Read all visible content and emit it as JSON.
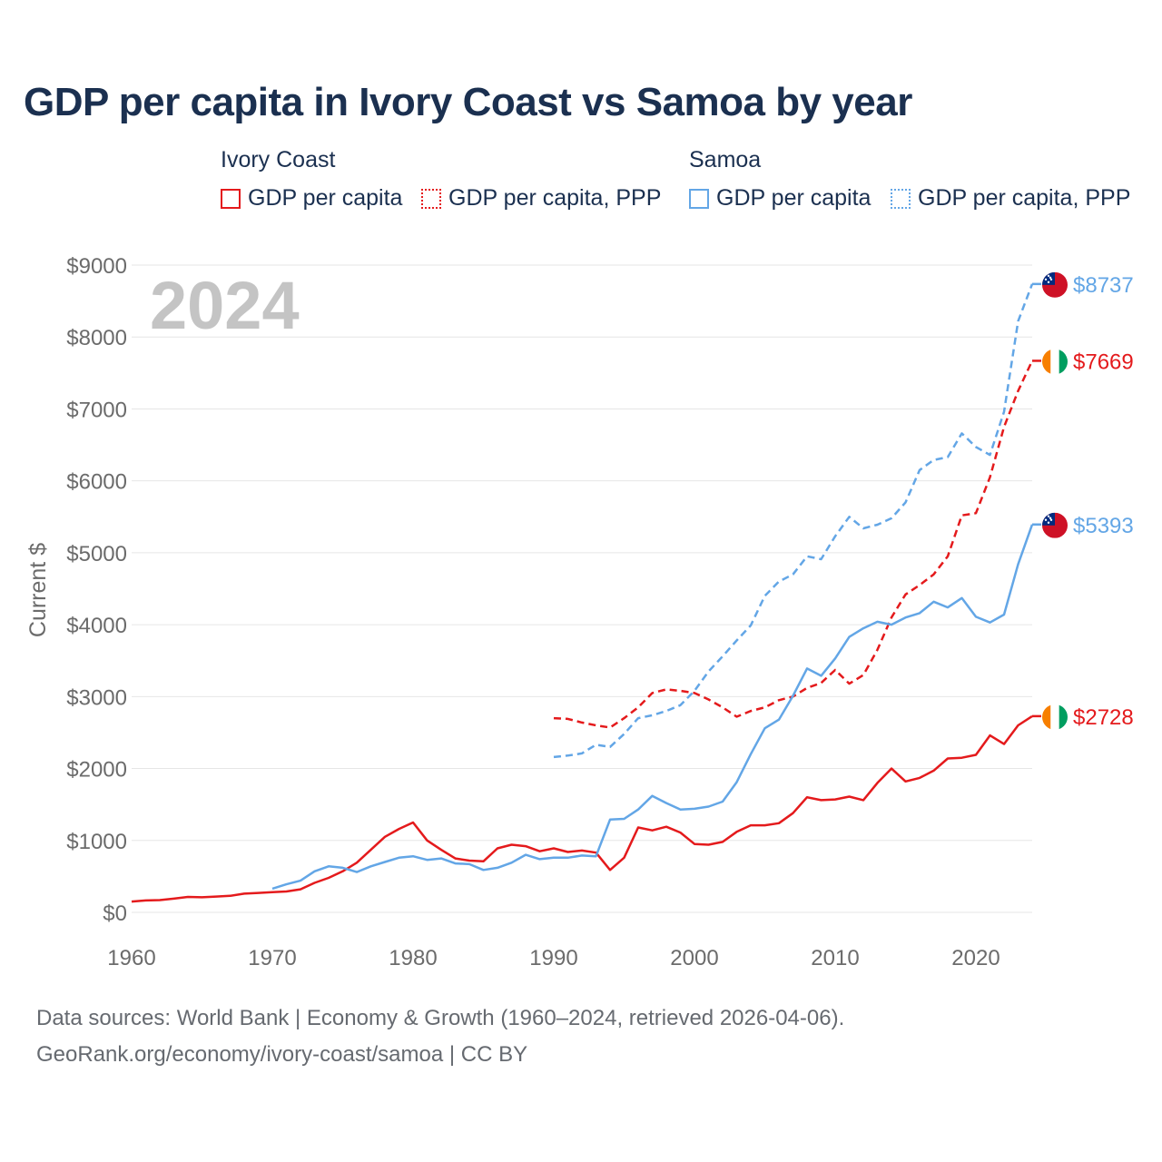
{
  "title": "GDP per capita in Ivory Coast vs Samoa by year",
  "legend": {
    "groups": [
      {
        "name": "Ivory Coast",
        "items": [
          "GDP per capita",
          "GDP per capita, PPP"
        ]
      },
      {
        "name": "Samoa",
        "items": [
          "GDP per capita",
          "GDP per capita, PPP"
        ]
      }
    ]
  },
  "year_watermark": "2024",
  "footer": {
    "line1": "Data sources: World Bank | Economy & Growth (1960–2024, retrieved 2026-04-06).",
    "line2": "GeoRank.org/economy/ivory-coast/samoa | CC BY"
  },
  "colors": {
    "ivory_coast": "#e41a1c",
    "samoa": "#63a6e6",
    "grid": "#e6e6e6",
    "axis_text": "#6b6b6b"
  },
  "chart_data": {
    "type": "line",
    "ylabel": "Current $",
    "xlim": [
      1960,
      2024
    ],
    "ylim": [
      0,
      9000
    ],
    "x_ticks": [
      1960,
      1970,
      1980,
      1990,
      2000,
      2010,
      2020
    ],
    "y_ticks": [
      0,
      1000,
      2000,
      3000,
      4000,
      5000,
      6000,
      7000,
      8000,
      9000
    ],
    "y_tick_labels": [
      "$0",
      "$1000",
      "$2000",
      "$3000",
      "$4000",
      "$5000",
      "$6000",
      "$7000",
      "$8000",
      "$9000"
    ],
    "series": [
      {
        "name": "Ivory Coast GDP per capita",
        "country": "Ivory Coast",
        "style": "solid",
        "color": "#e41a1c",
        "end_label": "$2728",
        "x": [
          1960,
          1961,
          1962,
          1963,
          1964,
          1965,
          1966,
          1967,
          1968,
          1969,
          1970,
          1971,
          1972,
          1973,
          1974,
          1975,
          1976,
          1977,
          1978,
          1979,
          1980,
          1981,
          1982,
          1983,
          1984,
          1985,
          1986,
          1987,
          1988,
          1989,
          1990,
          1991,
          1992,
          1993,
          1994,
          1995,
          1996,
          1997,
          1998,
          1999,
          2000,
          2001,
          2002,
          2003,
          2004,
          2005,
          2006,
          2007,
          2008,
          2009,
          2010,
          2011,
          2012,
          2013,
          2014,
          2015,
          2016,
          2017,
          2018,
          2019,
          2020,
          2021,
          2022,
          2023,
          2024
        ],
        "values": [
          150,
          165,
          170,
          190,
          215,
          210,
          220,
          230,
          260,
          270,
          280,
          290,
          320,
          410,
          480,
          570,
          690,
          870,
          1050,
          1160,
          1250,
          1000,
          870,
          750,
          720,
          710,
          890,
          940,
          920,
          850,
          890,
          840,
          860,
          830,
          590,
          760,
          1180,
          1140,
          1190,
          1110,
          950,
          940,
          980,
          1120,
          1210,
          1210,
          1240,
          1380,
          1600,
          1560,
          1570,
          1610,
          1560,
          1800,
          2000,
          1820,
          1870,
          1970,
          2140,
          2150,
          2190,
          2460,
          2340,
          2600,
          2728
        ]
      },
      {
        "name": "Ivory Coast GDP per capita, PPP",
        "country": "Ivory Coast",
        "style": "dashed",
        "color": "#e41a1c",
        "end_label": "$7669",
        "x": [
          1990,
          1991,
          1992,
          1993,
          1994,
          1995,
          1996,
          1997,
          1998,
          1999,
          2000,
          2001,
          2002,
          2003,
          2004,
          2005,
          2006,
          2007,
          2008,
          2009,
          2010,
          2011,
          2012,
          2013,
          2014,
          2015,
          2016,
          2017,
          2018,
          2019,
          2020,
          2021,
          2022,
          2023,
          2024
        ],
        "values": [
          2700,
          2690,
          2640,
          2600,
          2570,
          2700,
          2850,
          3050,
          3100,
          3080,
          3050,
          2960,
          2850,
          2720,
          2800,
          2850,
          2950,
          3000,
          3120,
          3190,
          3370,
          3180,
          3300,
          3650,
          4100,
          4420,
          4550,
          4700,
          4950,
          5520,
          5550,
          6050,
          6750,
          7250,
          7669
        ]
      },
      {
        "name": "Samoa GDP per capita",
        "country": "Samoa",
        "style": "solid",
        "color": "#63a6e6",
        "end_label": "$5393",
        "x": [
          1970,
          1971,
          1972,
          1973,
          1974,
          1975,
          1976,
          1977,
          1978,
          1979,
          1980,
          1981,
          1982,
          1983,
          1984,
          1985,
          1986,
          1987,
          1988,
          1989,
          1990,
          1991,
          1992,
          1993,
          1994,
          1995,
          1996,
          1997,
          1998,
          1999,
          2000,
          2001,
          2002,
          2003,
          2004,
          2005,
          2006,
          2007,
          2008,
          2009,
          2010,
          2011,
          2012,
          2013,
          2014,
          2015,
          2016,
          2017,
          2018,
          2019,
          2020,
          2021,
          2022,
          2023,
          2024
        ],
        "values": [
          330,
          390,
          440,
          570,
          640,
          620,
          560,
          640,
          700,
          760,
          780,
          730,
          750,
          680,
          670,
          590,
          620,
          690,
          800,
          740,
          760,
          760,
          790,
          780,
          1290,
          1300,
          1430,
          1620,
          1520,
          1430,
          1440,
          1470,
          1540,
          1810,
          2200,
          2560,
          2680,
          3010,
          3390,
          3290,
          3530,
          3830,
          3950,
          4040,
          4000,
          4100,
          4160,
          4320,
          4240,
          4370,
          4110,
          4030,
          4140,
          4840,
          5393
        ]
      },
      {
        "name": "Samoa GDP per capita, PPP",
        "country": "Samoa",
        "style": "dashed",
        "color": "#63a6e6",
        "end_label": "$8737",
        "x": [
          1990,
          1991,
          1992,
          1993,
          1994,
          1995,
          1996,
          1997,
          1998,
          1999,
          2000,
          2001,
          2002,
          2003,
          2004,
          2005,
          2006,
          2007,
          2008,
          2009,
          2010,
          2011,
          2012,
          2013,
          2014,
          2015,
          2016,
          2017,
          2018,
          2019,
          2020,
          2021,
          2022,
          2023,
          2024
        ],
        "values": [
          2160,
          2180,
          2210,
          2330,
          2300,
          2480,
          2700,
          2740,
          2800,
          2880,
          3080,
          3350,
          3560,
          3780,
          3990,
          4400,
          4600,
          4700,
          4950,
          4910,
          5230,
          5500,
          5340,
          5390,
          5480,
          5700,
          6150,
          6290,
          6330,
          6660,
          6470,
          6360,
          6960,
          8220,
          8737
        ]
      }
    ]
  }
}
